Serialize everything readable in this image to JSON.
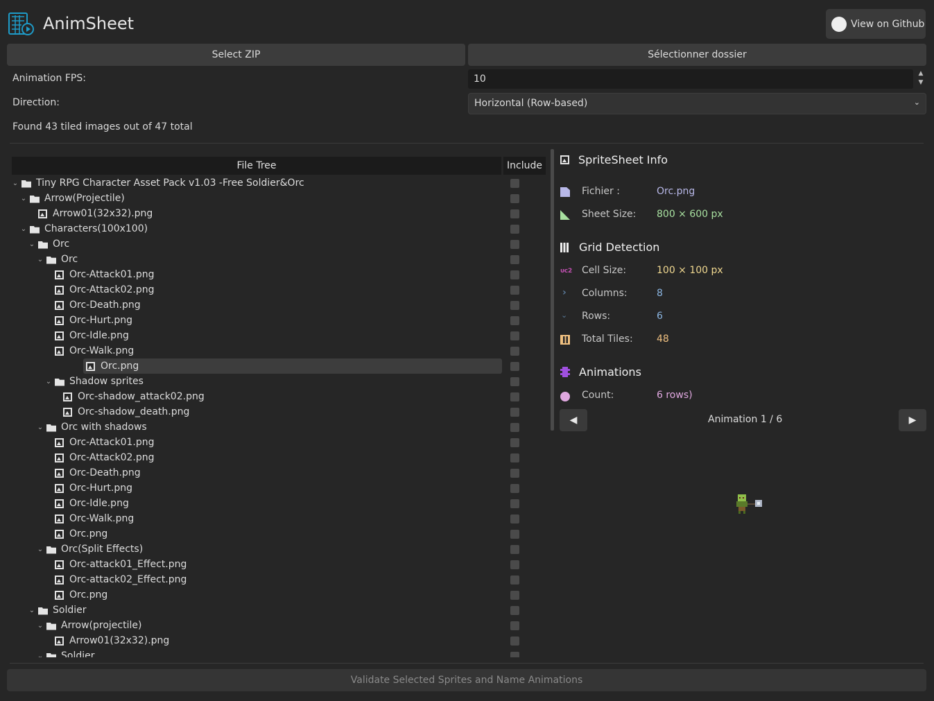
{
  "app": {
    "title": "AnimSheet",
    "github_label": "View on Github"
  },
  "toolbar": {
    "select_zip": "Select ZIP",
    "select_folder": "Sélectionner dossier"
  },
  "settings": {
    "fps_label": "Animation FPS:",
    "fps_value": "10",
    "direction_label": "Direction:",
    "direction_value": "Horizontal (Row-based)",
    "status": "Found 43 tiled images out of 47 total"
  },
  "tree": {
    "header_name": "File Tree",
    "header_include": "Include",
    "rows": [
      {
        "label": "Tiny RPG Character Asset Pack v1.03 -Free Soldier&Orc",
        "type": "folder",
        "depth": 0
      },
      {
        "label": "Arrow(Projectile)",
        "type": "folder",
        "depth": 1
      },
      {
        "label": "Arrow01(32x32).png",
        "type": "file",
        "depth": 2
      },
      {
        "label": "Characters(100x100)",
        "type": "folder",
        "depth": 1
      },
      {
        "label": "Orc",
        "type": "folder",
        "depth": 2
      },
      {
        "label": "Orc",
        "type": "folder",
        "depth": 3
      },
      {
        "label": "Orc-Attack01.png",
        "type": "file",
        "depth": 4
      },
      {
        "label": "Orc-Attack02.png",
        "type": "file",
        "depth": 4
      },
      {
        "label": "Orc-Death.png",
        "type": "file",
        "depth": 4
      },
      {
        "label": "Orc-Hurt.png",
        "type": "file",
        "depth": 4
      },
      {
        "label": "Orc-Idle.png",
        "type": "file",
        "depth": 4
      },
      {
        "label": "Orc-Walk.png",
        "type": "file",
        "depth": 4
      },
      {
        "label": "Orc.png",
        "type": "file",
        "depth": 4,
        "selected": true
      },
      {
        "label": "Shadow sprites",
        "type": "folder",
        "depth": 4
      },
      {
        "label": "Orc-shadow_attack02.png",
        "type": "file",
        "depth": 5
      },
      {
        "label": "Orc-shadow_death.png",
        "type": "file",
        "depth": 5
      },
      {
        "label": "Orc with shadows",
        "type": "folder",
        "depth": 3
      },
      {
        "label": "Orc-Attack01.png",
        "type": "file",
        "depth": 4
      },
      {
        "label": "Orc-Attack02.png",
        "type": "file",
        "depth": 4
      },
      {
        "label": "Orc-Death.png",
        "type": "file",
        "depth": 4
      },
      {
        "label": "Orc-Hurt.png",
        "type": "file",
        "depth": 4
      },
      {
        "label": "Orc-Idle.png",
        "type": "file",
        "depth": 4
      },
      {
        "label": "Orc-Walk.png",
        "type": "file",
        "depth": 4
      },
      {
        "label": "Orc.png",
        "type": "file",
        "depth": 4
      },
      {
        "label": "Orc(Split Effects)",
        "type": "folder",
        "depth": 3
      },
      {
        "label": "Orc-attack01_Effect.png",
        "type": "file",
        "depth": 4
      },
      {
        "label": "Orc-attack02_Effect.png",
        "type": "file",
        "depth": 4
      },
      {
        "label": "Orc.png",
        "type": "file",
        "depth": 4
      },
      {
        "label": "Soldier",
        "type": "folder",
        "depth": 2
      },
      {
        "label": "Arrow(projectile)",
        "type": "folder",
        "depth": 3
      },
      {
        "label": "Arrow01(32x32).png",
        "type": "file",
        "depth": 4
      },
      {
        "label": "Soldier",
        "type": "folder",
        "depth": 3
      }
    ]
  },
  "info": {
    "sheet_title": "SpriteSheet Info",
    "file_label": "Fichier :",
    "file_value": "Orc.png",
    "size_label": "Sheet Size:",
    "size_value": "800 × 600 px",
    "grid_title": "Grid Detection",
    "cell_label": "Cell Size:",
    "cell_value": "100 × 100 px",
    "cols_label": "Columns:",
    "cols_value": "8",
    "rows_label": "Rows:",
    "rows_value": "6",
    "tiles_label": "Total Tiles:",
    "tiles_value": "48",
    "anim_title": "Animations",
    "count_label": "Count:",
    "count_value": "6 rows)",
    "anim_nav": "Animation 1 / 6"
  },
  "colors": {
    "file": "#b8b8e8",
    "size": "#a8e0a0",
    "cell": "#f0d890",
    "cols": "#8ab4e0",
    "tiles": "#f0c080",
    "count": "#e0a8e0",
    "accent": "#1e9bc8"
  },
  "footer": {
    "validate_label": "Validate Selected Sprites and Name Animations"
  }
}
